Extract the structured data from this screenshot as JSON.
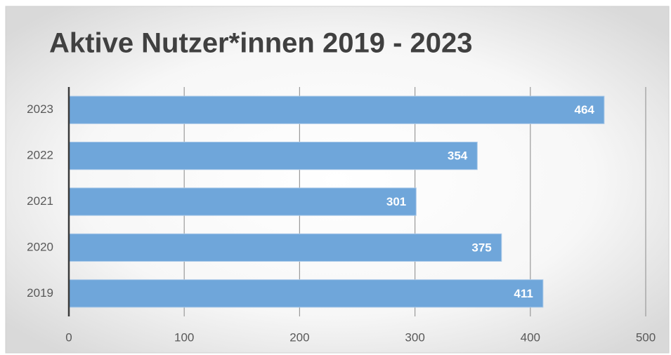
{
  "chart_data": {
    "type": "bar",
    "orientation": "horizontal",
    "title": "Aktive Nutzer*innen 2019 - 2023",
    "categories": [
      "2019",
      "2020",
      "2021",
      "2022",
      "2023"
    ],
    "values": [
      411,
      375,
      301,
      354,
      464
    ],
    "color": "#6fa6da",
    "xlim": [
      0,
      500
    ],
    "xticks": [
      0,
      100,
      200,
      300,
      400,
      500
    ],
    "grid": true
  }
}
